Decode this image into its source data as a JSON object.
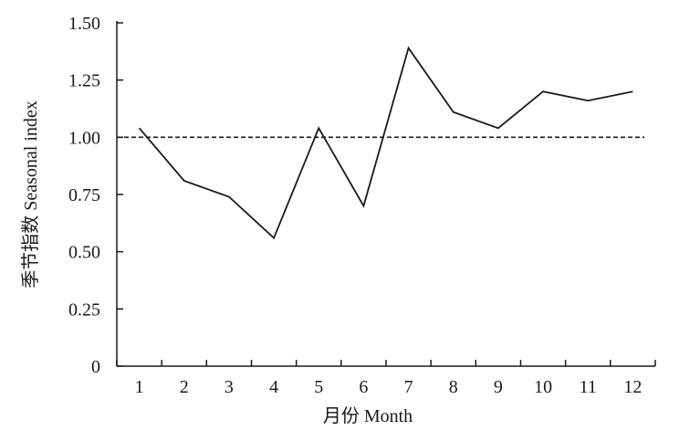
{
  "chart_data": {
    "type": "line",
    "title": "",
    "xlabel": "月份 Month",
    "ylabel": "季节指数 Seasonal index",
    "x": [
      1,
      2,
      3,
      4,
      5,
      6,
      7,
      8,
      9,
      10,
      11,
      12
    ],
    "x_tick_labels": [
      "1",
      "2",
      "3",
      "4",
      "5",
      "6",
      "7",
      "8",
      "9",
      "10",
      "11",
      "12"
    ],
    "y_tick_labels": [
      "0",
      "0.25",
      "0.50",
      "0.75",
      "1.00",
      "1.25",
      "1.50"
    ],
    "y_ticks": [
      0,
      0.25,
      0.5,
      0.75,
      1.0,
      1.25,
      1.5
    ],
    "ylim": [
      0,
      1.5
    ],
    "xlim": [
      0.5,
      12.5
    ],
    "series": [
      {
        "values": [
          1.04,
          0.81,
          0.74,
          0.56,
          1.04,
          0.7,
          1.39,
          1.11,
          1.04,
          1.2,
          1.16,
          1.2
        ]
      }
    ],
    "reference_line": {
      "y": 1.0,
      "style": "dashed"
    },
    "grid": false,
    "legend": "none",
    "line_color": "#1a1a1a"
  }
}
